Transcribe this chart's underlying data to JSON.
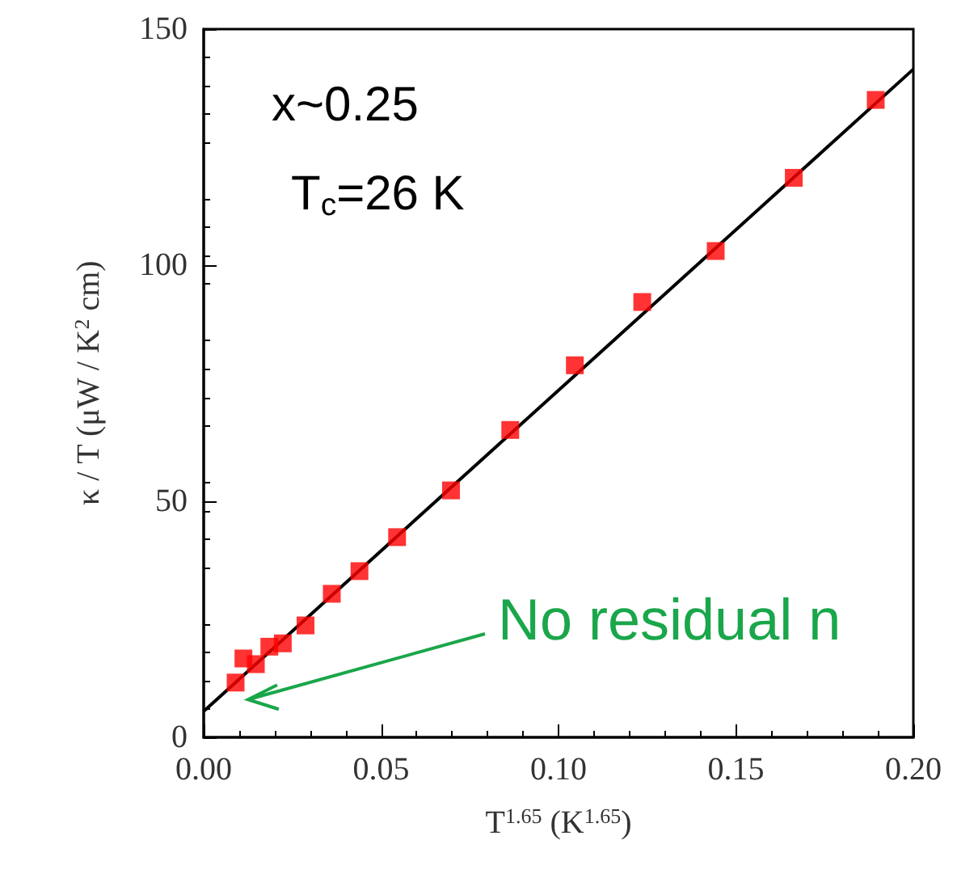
{
  "chart_data": {
    "type": "scatter",
    "xlabel": "T$^{1.65}$ (K$^{1.65}$)",
    "ylabel": "κ / T (μW / K$^{2}$ cm)",
    "annotations": [
      "x~0.25",
      "T$_{c}$=26 K",
      "No residual n"
    ],
    "series": [
      {
        "color": "#ff0000",
        "marker": "square",
        "x": [
          0.009,
          0.0112,
          0.0147,
          0.0185,
          0.0223,
          0.0287,
          0.0361,
          0.0439,
          0.0545,
          0.0697,
          0.0864,
          0.1046,
          0.1236,
          0.1443,
          0.1663,
          0.1894
        ],
        "values": [
          11.6,
          16.7,
          15.5,
          19.2,
          19.9,
          23.7,
          30.4,
          35.2,
          42.4,
          52.3,
          65.1,
          78.8,
          92.2,
          103.0,
          118.5,
          135.0
        ]
      },
      {
        "type": "line",
        "color": "#000000",
        "marker": "none",
        "line_style": "solid",
        "x": [
          0,
          0.2
        ],
        "values": [
          5.5,
          141.5
        ]
      }
    ],
    "xlim": [
      0,
      0.2
    ],
    "xticks": [
      {
        "value": 0,
        "label": "0.00"
      },
      {
        "value": 0.05,
        "label": "0.05"
      },
      {
        "value": 0.1,
        "label": "0.10"
      },
      {
        "value": 0.15,
        "label": "0.15"
      },
      {
        "value": 0.2,
        "label": "0.20"
      }
    ],
    "ylim": [
      0,
      150
    ],
    "yticks": [
      0,
      50,
      100,
      150
    ],
    "grid": false
  }
}
